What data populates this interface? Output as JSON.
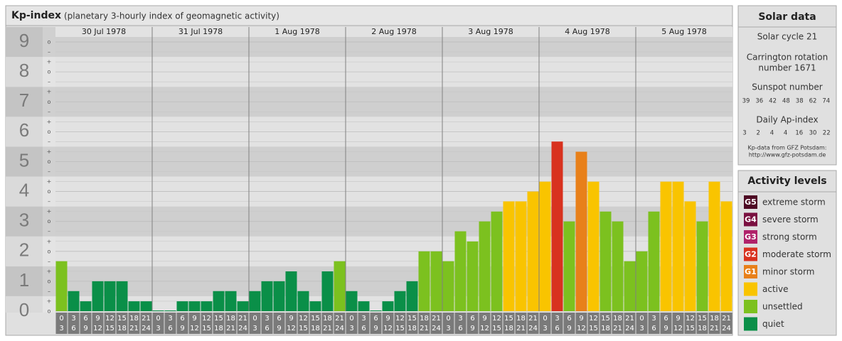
{
  "chart_data": {
    "type": "bar",
    "title": "Kp-index",
    "subtitle": "(planetary 3-hourly index of geomagnetic activity)",
    "ylim": [
      0,
      9.5
    ],
    "yticks": [
      0,
      1,
      2,
      3,
      4,
      5,
      6,
      7,
      8,
      9
    ],
    "minor_labels": [
      "o",
      "+",
      "–"
    ],
    "grid": true,
    "intervals": [
      [
        "0",
        "3"
      ],
      [
        "3",
        "6"
      ],
      [
        "6",
        "9"
      ],
      [
        "9",
        "12"
      ],
      [
        "12",
        "15"
      ],
      [
        "15",
        "18"
      ],
      [
        "18",
        "21"
      ],
      [
        "21",
        "24"
      ]
    ],
    "days": [
      {
        "date": "30 Jul 1978",
        "values": [
          1.67,
          0.67,
          0.33,
          1,
          1,
          1,
          0.33,
          0.33
        ],
        "colors": [
          "#7cc11f",
          "#0a8f48",
          "#0a8f48",
          "#0a8f48",
          "#0a8f48",
          "#0a8f48",
          "#0a8f48",
          "#0a8f48"
        ]
      },
      {
        "date": "31 Jul 1978",
        "values": [
          0,
          0,
          0.33,
          0.33,
          0.33,
          0.67,
          0.67,
          0.33
        ],
        "colors": [
          "#0a8f48",
          "#0a8f48",
          "#0a8f48",
          "#0a8f48",
          "#0a8f48",
          "#0a8f48",
          "#0a8f48",
          "#0a8f48"
        ]
      },
      {
        "date": "1 Aug 1978",
        "values": [
          0.67,
          1,
          1,
          1.33,
          0.67,
          0.33,
          1.33,
          1.67
        ],
        "colors": [
          "#0a8f48",
          "#0a8f48",
          "#0a8f48",
          "#0a8f48",
          "#0a8f48",
          "#0a8f48",
          "#0a8f48",
          "#7cc11f"
        ]
      },
      {
        "date": "2 Aug 1978",
        "values": [
          0.67,
          0.33,
          0,
          0.33,
          0.67,
          1,
          2,
          2
        ],
        "colors": [
          "#0a8f48",
          "#0a8f48",
          "#0a8f48",
          "#0a8f48",
          "#0a8f48",
          "#0a8f48",
          "#7cc11f",
          "#7cc11f"
        ]
      },
      {
        "date": "3 Aug 1978",
        "values": [
          1.67,
          2.67,
          2.33,
          3,
          3.33,
          3.67,
          3.67,
          4
        ],
        "colors": [
          "#7cc11f",
          "#7cc11f",
          "#7cc11f",
          "#7cc11f",
          "#7cc11f",
          "#f9c400",
          "#f9c400",
          "#f9c400"
        ]
      },
      {
        "date": "4 Aug 1978",
        "values": [
          4.33,
          5.67,
          3,
          5.33,
          4.33,
          3.33,
          3,
          1.67
        ],
        "colors": [
          "#f9c400",
          "#d8321f",
          "#7cc11f",
          "#e8801a",
          "#f9c400",
          "#7cc11f",
          "#7cc11f",
          "#7cc11f"
        ]
      },
      {
        "date": "5 Aug 1978",
        "values": [
          2,
          3.33,
          4.33,
          4.33,
          3.67,
          3,
          4.33,
          3.67
        ],
        "colors": [
          "#7cc11f",
          "#7cc11f",
          "#f9c400",
          "#f9c400",
          "#f9c400",
          "#7cc11f",
          "#f9c400",
          "#f9c400"
        ]
      }
    ]
  },
  "solar": {
    "title": "Solar data",
    "cycle": "Solar cycle 21",
    "carrington": [
      "Carrington rotation",
      "number 1671"
    ],
    "sunspot_label": "Sunspot number",
    "sunspots": [
      39,
      36,
      42,
      48,
      38,
      62,
      74
    ],
    "ap_label": "Daily Ap-index",
    "ap": [
      3,
      2,
      4,
      4,
      16,
      30,
      22
    ],
    "source": [
      "Kp-data from GFZ Potsdam:",
      "http://www.gfz-potsdam.de"
    ]
  },
  "legend": {
    "title": "Activity levels",
    "items": [
      {
        "badge": "G5",
        "name": "extreme storm",
        "color": "#4e0a24"
      },
      {
        "badge": "G4",
        "name": "severe storm",
        "color": "#7a1040"
      },
      {
        "badge": "G3",
        "name": "strong storm",
        "color": "#b0226a"
      },
      {
        "badge": "G2",
        "name": "moderate storm",
        "color": "#d8321f"
      },
      {
        "badge": "G1",
        "name": "minor storm",
        "color": "#e8801a"
      },
      {
        "name": "active",
        "color": "#f9c400"
      },
      {
        "name": "unsettled",
        "color": "#7cc11f"
      },
      {
        "name": "quiet",
        "color": "#0a8f48"
      }
    ]
  }
}
